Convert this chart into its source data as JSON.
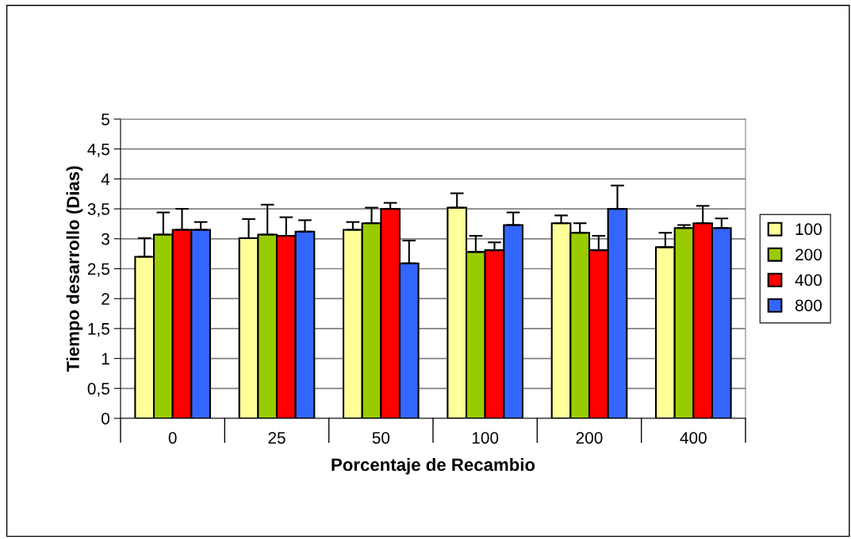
{
  "chart_data": {
    "type": "bar",
    "xlabel": "Porcentaje de Recambio",
    "ylabel": "Tiempo desarrollo (Dias)",
    "categories": [
      "0",
      "25",
      "50",
      "100",
      "200",
      "400"
    ],
    "series": [
      {
        "name": "100",
        "color": "#ffff99",
        "values": [
          2.7,
          3.01,
          3.15,
          3.52,
          3.26,
          2.86
        ],
        "errors": [
          [
            2.7,
            3.01
          ],
          [
            3.01,
            3.33
          ],
          [
            3.15,
            3.28
          ],
          [
            3.52,
            3.76
          ],
          [
            3.26,
            3.39
          ],
          [
            2.86,
            3.1
          ]
        ]
      },
      {
        "name": "200",
        "color": "#99cc00",
        "values": [
          3.07,
          3.07,
          3.26,
          2.78,
          3.1,
          3.18
        ],
        "errors": [
          [
            3.07,
            3.44
          ],
          [
            3.07,
            3.57
          ],
          [
            3.26,
            3.52
          ],
          [
            2.78,
            3.05
          ],
          [
            3.1,
            3.26
          ],
          [
            3.18,
            3.23
          ]
        ]
      },
      {
        "name": "400",
        "color": "#ff0000",
        "values": [
          3.15,
          3.05,
          3.5,
          2.81,
          2.81,
          3.26
        ],
        "errors": [
          [
            3.15,
            3.5
          ],
          [
            3.05,
            3.36
          ],
          [
            3.5,
            3.6
          ],
          [
            2.81,
            2.94
          ],
          [
            2.81,
            3.05
          ],
          [
            3.26,
            3.55
          ]
        ]
      },
      {
        "name": "800",
        "color": "#3366ff",
        "values": [
          3.15,
          3.12,
          2.59,
          3.23,
          3.5,
          3.18
        ],
        "errors": [
          [
            3.15,
            3.28
          ],
          [
            3.12,
            3.31
          ],
          [
            2.59,
            2.97
          ],
          [
            3.23,
            3.44
          ],
          [
            3.5,
            3.89
          ],
          [
            3.18,
            3.34
          ]
        ]
      }
    ],
    "ylim": [
      0,
      5
    ],
    "yticks": [
      {
        "value": 0,
        "label": "0"
      },
      {
        "value": 0.5,
        "label": "0,5"
      },
      {
        "value": 1,
        "label": "1"
      },
      {
        "value": 1.5,
        "label": "1,5"
      },
      {
        "value": 2,
        "label": "2"
      },
      {
        "value": 2.5,
        "label": "2,5"
      },
      {
        "value": 3,
        "label": "3"
      },
      {
        "value": 3.5,
        "label": "3,5"
      },
      {
        "value": 4,
        "label": "4"
      },
      {
        "value": 4.5,
        "label": "4,5"
      },
      {
        "value": 5,
        "label": "5"
      }
    ],
    "grid": "y",
    "legend": "right"
  }
}
